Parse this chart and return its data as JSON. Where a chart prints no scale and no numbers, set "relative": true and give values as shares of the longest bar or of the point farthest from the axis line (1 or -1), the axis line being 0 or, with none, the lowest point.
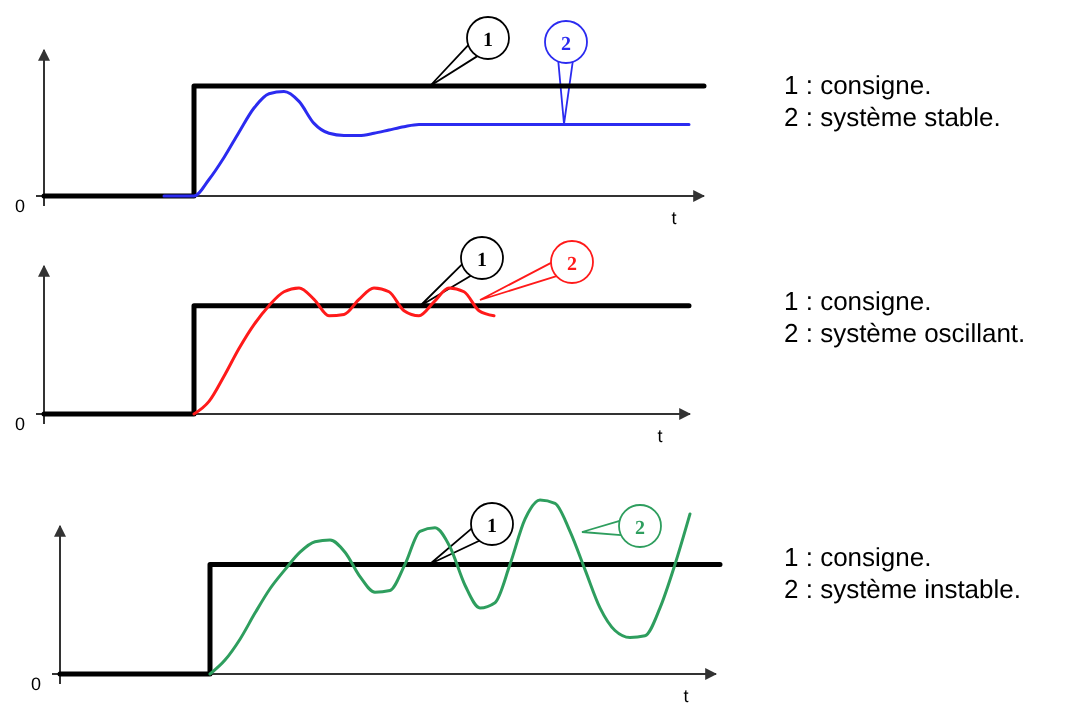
{
  "chart_data": [
    {
      "type": "line",
      "relative": true,
      "xlabel": "t",
      "categories": [
        null,
        null,
        null,
        null,
        null,
        null,
        null,
        null,
        null,
        null,
        null,
        null,
        null,
        null,
        null,
        null,
        null,
        null,
        null,
        null,
        null,
        null,
        null,
        null,
        null,
        null,
        null,
        null,
        null,
        null,
        null,
        null,
        null,
        null,
        null,
        null,
        null,
        null,
        null,
        null,
        null,
        null,
        null,
        null,
        null
      ],
      "series": [
        {
          "name": "1",
          "type": "step",
          "color": "#000000",
          "values": [
            0,
            0,
            0,
            0,
            0,
            0,
            0,
            0,
            0,
            0,
            1,
            1,
            1,
            1,
            1,
            1,
            1,
            1,
            1,
            1,
            1,
            1,
            1,
            1,
            1,
            1,
            1,
            1,
            1,
            1,
            1,
            1,
            1,
            1,
            1,
            1,
            1,
            1,
            1,
            1,
            1,
            1,
            1,
            1,
            1
          ]
        },
        {
          "name": "2",
          "type": "line",
          "color": "#2b2bf0",
          "values": [
            null,
            null,
            null,
            null,
            null,
            null,
            null,
            null,
            0,
            0,
            0,
            0.15,
            0.35,
            0.58,
            0.8,
            0.93,
            0.95,
            0.86,
            0.66,
            0.57,
            0.55,
            0.55,
            0.57,
            0.6,
            0.63,
            0.65,
            0.65,
            0.65,
            0.65,
            0.65,
            0.65,
            0.65,
            0.65,
            0.65,
            0.65,
            0.65,
            0.65,
            0.65,
            0.65,
            0.65,
            0.65,
            0.65,
            0.65,
            0.65,
            null
          ]
        }
      ],
      "annotations": [
        "0",
        "1 : consigne.",
        "2 : système stable."
      ]
    },
    {
      "type": "line",
      "relative": true,
      "xlabel": "t",
      "categories": [
        null,
        null,
        null,
        null,
        null,
        null,
        null,
        null,
        null,
        null,
        null,
        null,
        null,
        null,
        null,
        null,
        null,
        null,
        null,
        null,
        null,
        null,
        null,
        null,
        null,
        null,
        null,
        null,
        null,
        null,
        null,
        null,
        null,
        null,
        null,
        null,
        null,
        null,
        null,
        null,
        null,
        null,
        null,
        null,
        null
      ],
      "series": [
        {
          "name": "1",
          "type": "step",
          "color": "#000000",
          "values": [
            0,
            0,
            0,
            0,
            0,
            0,
            0,
            0,
            0,
            0,
            0.86,
            0.86,
            0.86,
            0.86,
            0.86,
            0.86,
            0.86,
            0.86,
            0.86,
            0.86,
            0.86,
            0.86,
            0.86,
            0.86,
            0.86,
            0.86,
            0.86,
            0.86,
            0.86,
            0.86,
            0.86,
            0.86,
            0.86,
            0.86,
            0.86,
            0.86,
            0.86,
            0.86,
            0.86,
            0.86,
            0.86,
            0.86,
            0.86,
            0.86,
            null
          ]
        },
        {
          "name": "2",
          "type": "line",
          "color": "#ff1a1a",
          "values": [
            null,
            null,
            null,
            null,
            null,
            null,
            null,
            null,
            null,
            null,
            0,
            0.1,
            0.3,
            0.52,
            0.71,
            0.86,
            0.97,
            1,
            0.91,
            0.78,
            0.79,
            0.91,
            1,
            0.97,
            0.82,
            0.78,
            0.89,
            1,
            0.97,
            0.82,
            0.78,
            null,
            null,
            null,
            null,
            null,
            null,
            null,
            null,
            null,
            null,
            null,
            null,
            null,
            null
          ]
        }
      ],
      "annotations": [
        "0",
        "1 : consigne.",
        "2 : système oscillant."
      ]
    },
    {
      "type": "line",
      "relative": true,
      "xlabel": "t",
      "categories": [
        null,
        null,
        null,
        null,
        null,
        null,
        null,
        null,
        null,
        null,
        null,
        null,
        null,
        null,
        null,
        null,
        null,
        null,
        null,
        null,
        null,
        null,
        null,
        null,
        null,
        null,
        null,
        null,
        null,
        null,
        null,
        null,
        null,
        null,
        null,
        null,
        null,
        null,
        null,
        null,
        null,
        null,
        null,
        null,
        null
      ],
      "series": [
        {
          "name": "1",
          "type": "step",
          "color": "#000000",
          "values": [
            0,
            0,
            0,
            0,
            0,
            0,
            0,
            0,
            0,
            0,
            0.63,
            0.63,
            0.63,
            0.63,
            0.63,
            0.63,
            0.63,
            0.63,
            0.63,
            0.63,
            0.63,
            0.63,
            0.63,
            0.63,
            0.63,
            0.63,
            0.63,
            0.63,
            0.63,
            0.63,
            0.63,
            0.63,
            0.63,
            0.63,
            0.63,
            0.63,
            0.63,
            0.63,
            0.63,
            0.63,
            0.63,
            0.63,
            0.63,
            0.63,
            0.63
          ]
        },
        {
          "name": "2",
          "type": "line",
          "color": "#2e9e5e",
          "values": [
            null,
            null,
            null,
            null,
            null,
            null,
            null,
            null,
            null,
            null,
            0,
            0.08,
            0.2,
            0.35,
            0.49,
            0.6,
            0.7,
            0.76,
            0.77,
            0.7,
            0.56,
            0.47,
            0.48,
            0.63,
            0.82,
            0.84,
            0.73,
            0.51,
            0.38,
            0.41,
            0.63,
            0.89,
            1,
            0.98,
            0.82,
            0.6,
            0.38,
            0.25,
            0.21,
            0.22,
            0.38,
            0.63,
            0.92,
            null,
            null
          ]
        }
      ],
      "annotations": [
        "0",
        "1 : consigne.",
        "2 : système instable."
      ]
    }
  ]
}
